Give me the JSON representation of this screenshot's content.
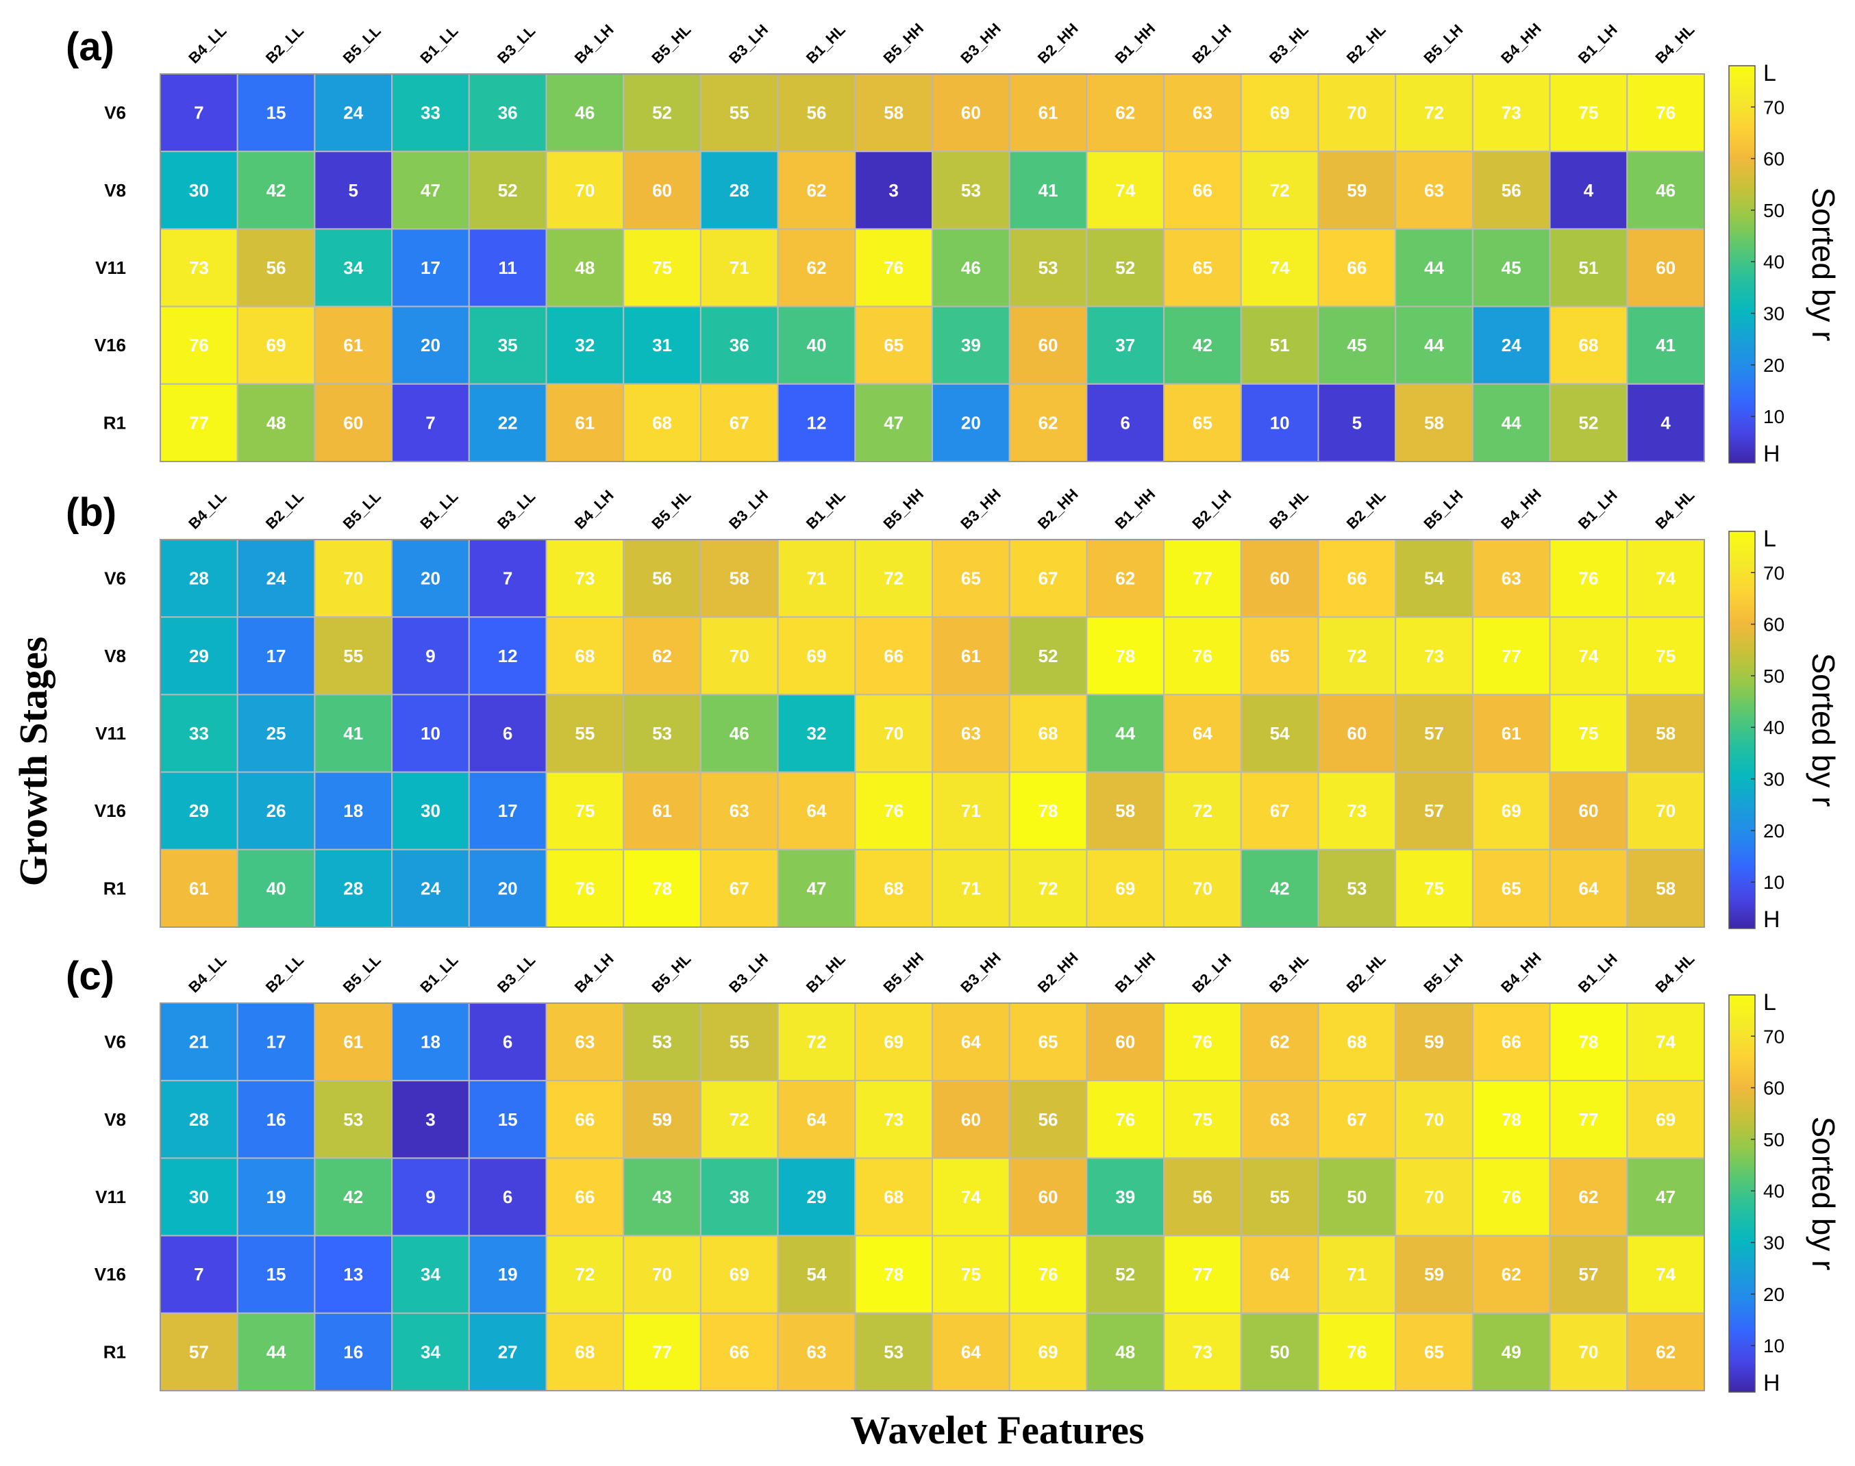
{
  "figure": {
    "ylabel": "Growth Stages",
    "xlabel": "Wavelet Features"
  },
  "colorbar": {
    "top_label": "L",
    "bottom_label": "H",
    "ticks": [
      "10",
      "20",
      "30",
      "40",
      "50",
      "60",
      "70"
    ],
    "tick_values": [
      10,
      20,
      30,
      40,
      50,
      60,
      70
    ],
    "range": [
      1,
      78
    ],
    "title": "Sorted by r"
  },
  "colormap": [
    "#3e26a8",
    "#4745e6",
    "#3566fe",
    "#2588ee",
    "#199fd8",
    "#07b8be",
    "#26c09e",
    "#57c773",
    "#94c94a",
    "#c8c13a",
    "#f2b93c",
    "#fcd335",
    "#f5ea29",
    "#f9fb14"
  ],
  "chart_data": [
    {
      "type": "heatmap",
      "panel_label": "(a)",
      "columns": [
        "B4_LL",
        "B2_LL",
        "B5_LL",
        "B1_LL",
        "B3_LL",
        "B4_LH",
        "B5_HL",
        "B3_LH",
        "B1_HL",
        "B5_HH",
        "B3_HH",
        "B2_HH",
        "B1_HH",
        "B2_LH",
        "B3_HL",
        "B2_HL",
        "B5_LH",
        "B4_HH",
        "B1_LH",
        "B4_HL"
      ],
      "rows": [
        "V6",
        "V8",
        "V11",
        "V16",
        "R1"
      ],
      "values": [
        [
          7,
          15,
          24,
          33,
          36,
          46,
          52,
          55,
          56,
          58,
          60,
          61,
          62,
          63,
          69,
          70,
          72,
          73,
          75,
          76
        ],
        [
          30,
          42,
          5,
          47,
          52,
          70,
          60,
          28,
          62,
          3,
          53,
          41,
          74,
          66,
          72,
          59,
          63,
          56,
          4,
          46
        ],
        [
          73,
          56,
          34,
          17,
          11,
          48,
          75,
          71,
          62,
          76,
          46,
          53,
          52,
          65,
          74,
          66,
          44,
          45,
          51,
          60
        ],
        [
          76,
          69,
          61,
          20,
          35,
          32,
          31,
          36,
          40,
          65,
          39,
          60,
          37,
          42,
          51,
          45,
          44,
          24,
          68,
          41
        ],
        [
          77,
          48,
          60,
          7,
          22,
          61,
          68,
          67,
          12,
          47,
          20,
          62,
          6,
          65,
          10,
          5,
          58,
          44,
          52,
          4
        ]
      ]
    },
    {
      "type": "heatmap",
      "panel_label": "(b)",
      "columns": [
        "B4_LL",
        "B2_LL",
        "B5_LL",
        "B1_LL",
        "B3_LL",
        "B4_LH",
        "B5_HL",
        "B3_LH",
        "B1_HL",
        "B5_HH",
        "B3_HH",
        "B2_HH",
        "B1_HH",
        "B2_LH",
        "B3_HL",
        "B2_HL",
        "B5_LH",
        "B4_HH",
        "B1_LH",
        "B4_HL"
      ],
      "rows": [
        "V6",
        "V8",
        "V11",
        "V16",
        "R1"
      ],
      "values": [
        [
          28,
          24,
          70,
          20,
          7,
          73,
          56,
          58,
          71,
          72,
          65,
          67,
          62,
          77,
          60,
          66,
          54,
          63,
          76,
          74
        ],
        [
          29,
          17,
          55,
          9,
          12,
          68,
          62,
          70,
          69,
          66,
          61,
          52,
          78,
          76,
          65,
          72,
          73,
          77,
          74,
          75
        ],
        [
          33,
          25,
          41,
          10,
          6,
          55,
          53,
          46,
          32,
          70,
          63,
          68,
          44,
          64,
          54,
          60,
          57,
          61,
          75,
          58
        ],
        [
          29,
          26,
          18,
          30,
          17,
          75,
          61,
          63,
          64,
          76,
          71,
          78,
          58,
          72,
          67,
          73,
          57,
          69,
          60,
          70
        ],
        [
          61,
          40,
          28,
          24,
          20,
          76,
          78,
          67,
          47,
          68,
          71,
          72,
          69,
          70,
          42,
          53,
          75,
          65,
          64,
          58
        ]
      ]
    },
    {
      "type": "heatmap",
      "panel_label": "(c)",
      "columns": [
        "B4_LL",
        "B2_LL",
        "B5_LL",
        "B1_LL",
        "B3_LL",
        "B4_LH",
        "B5_HL",
        "B3_LH",
        "B1_HL",
        "B5_HH",
        "B3_HH",
        "B2_HH",
        "B1_HH",
        "B2_LH",
        "B3_HL",
        "B2_HL",
        "B5_LH",
        "B4_HH",
        "B1_LH",
        "B4_HL"
      ],
      "rows": [
        "V6",
        "V8",
        "V11",
        "V16",
        "R1"
      ],
      "values": [
        [
          21,
          17,
          61,
          18,
          6,
          63,
          53,
          55,
          72,
          69,
          64,
          65,
          60,
          76,
          62,
          68,
          59,
          66,
          78,
          74
        ],
        [
          28,
          16,
          53,
          3,
          15,
          66,
          59,
          72,
          64,
          73,
          60,
          56,
          76,
          75,
          63,
          67,
          70,
          78,
          77,
          69
        ],
        [
          30,
          19,
          42,
          9,
          6,
          66,
          43,
          38,
          29,
          68,
          74,
          60,
          39,
          56,
          55,
          50,
          70,
          76,
          62,
          47
        ],
        [
          7,
          15,
          13,
          34,
          19,
          72,
          70,
          69,
          54,
          78,
          75,
          76,
          52,
          77,
          64,
          71,
          59,
          62,
          57,
          74
        ],
        [
          57,
          44,
          16,
          34,
          27,
          68,
          77,
          66,
          63,
          53,
          64,
          69,
          48,
          73,
          50,
          76,
          65,
          49,
          70,
          62
        ]
      ]
    }
  ]
}
